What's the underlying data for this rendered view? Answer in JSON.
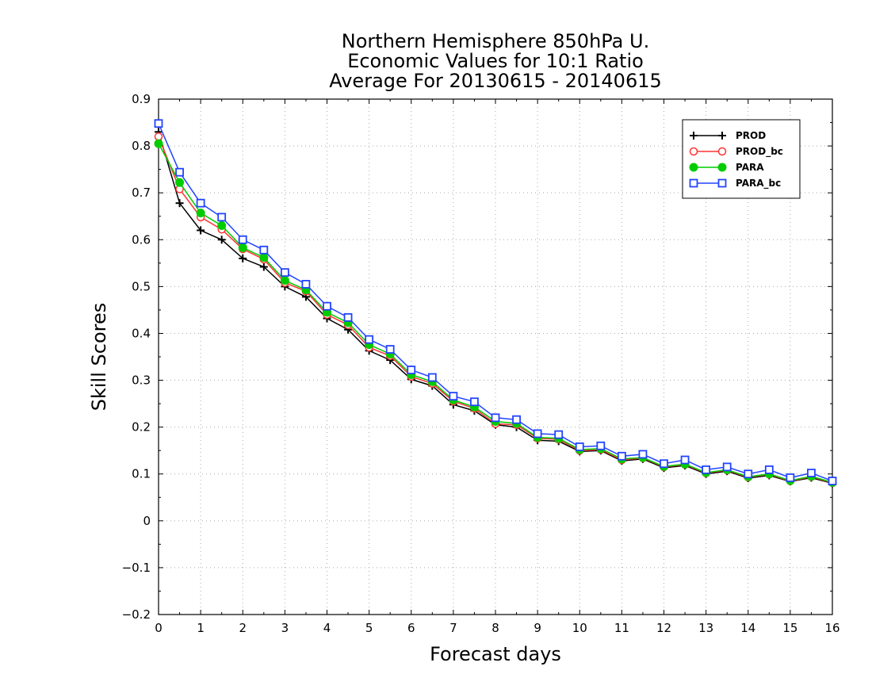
{
  "chart_data": {
    "type": "line",
    "title": [
      "Northern Hemisphere 850hPa U.",
      "Economic Values for 10:1 Ratio",
      "Average For 20130615 - 20140615"
    ],
    "xlabel": "Forecast days",
    "ylabel": "Skill Scores",
    "xlim": [
      0,
      16
    ],
    "ylim": [
      -0.2,
      0.9
    ],
    "xticks": [
      0,
      1,
      2,
      3,
      4,
      5,
      6,
      7,
      8,
      9,
      10,
      11,
      12,
      13,
      14,
      15,
      16
    ],
    "xtick_labels": [
      "0",
      "1",
      "2",
      "3",
      "4",
      "5",
      "6",
      "7",
      "8",
      "9",
      "10",
      "11",
      "12",
      "13",
      "14",
      "15",
      "16"
    ],
    "yticks": [
      -0.2,
      -0.1,
      0,
      0.1,
      0.2,
      0.3,
      0.4,
      0.5,
      0.6,
      0.7,
      0.8,
      0.9
    ],
    "ytick_labels": [
      "−0.2",
      "−0.1",
      "0",
      "0.1",
      "0.2",
      "0.3",
      "0.4",
      "0.5",
      "0.6",
      "0.7",
      "0.8",
      "0.9"
    ],
    "grid": true,
    "legend_position": "top-right",
    "x": [
      0,
      0.5,
      1,
      1.5,
      2,
      2.5,
      3,
      3.5,
      4,
      4.5,
      5,
      5.5,
      6,
      6.5,
      7,
      7.5,
      8,
      8.5,
      9,
      9.5,
      10,
      10.5,
      11,
      11.5,
      12,
      12.5,
      13,
      13.5,
      14,
      14.5,
      15,
      15.5,
      16
    ],
    "series": [
      {
        "name": "PROD",
        "color": "#000000",
        "marker": "plus",
        "values": [
          0.83,
          0.678,
          0.62,
          0.6,
          0.56,
          0.542,
          0.5,
          0.478,
          0.432,
          0.408,
          0.363,
          0.343,
          0.302,
          0.288,
          0.248,
          0.235,
          0.205,
          0.2,
          0.172,
          0.17,
          0.148,
          0.15,
          0.128,
          0.132,
          0.113,
          0.118,
          0.1,
          0.106,
          0.091,
          0.097,
          0.084,
          0.092,
          0.08
        ]
      },
      {
        "name": "PROD_bc",
        "color": "#ff3333",
        "marker": "circle-open",
        "values": [
          0.82,
          0.708,
          0.648,
          0.622,
          0.58,
          0.558,
          0.508,
          0.49,
          0.44,
          0.418,
          0.37,
          0.352,
          0.308,
          0.293,
          0.255,
          0.24,
          0.207,
          0.205,
          0.176,
          0.174,
          0.15,
          0.152,
          0.13,
          0.134,
          0.115,
          0.12,
          0.102,
          0.108,
          0.093,
          0.099,
          0.085,
          0.094,
          0.081
        ]
      },
      {
        "name": "PARA",
        "color": "#00cc00",
        "marker": "circle-filled",
        "values": [
          0.805,
          0.722,
          0.657,
          0.63,
          0.583,
          0.562,
          0.513,
          0.493,
          0.445,
          0.423,
          0.376,
          0.356,
          0.312,
          0.297,
          0.258,
          0.243,
          0.212,
          0.208,
          0.178,
          0.176,
          0.152,
          0.154,
          0.132,
          0.135,
          0.116,
          0.121,
          0.103,
          0.109,
          0.094,
          0.1,
          0.086,
          0.095,
          0.082
        ]
      },
      {
        "name": "PARA_bc",
        "color": "#2244ff",
        "marker": "square-open",
        "values": [
          0.848,
          0.744,
          0.678,
          0.648,
          0.6,
          0.578,
          0.53,
          0.505,
          0.458,
          0.434,
          0.387,
          0.366,
          0.322,
          0.306,
          0.266,
          0.254,
          0.22,
          0.216,
          0.186,
          0.184,
          0.158,
          0.16,
          0.138,
          0.142,
          0.122,
          0.13,
          0.109,
          0.115,
          0.1,
          0.109,
          0.092,
          0.102,
          0.085
        ]
      }
    ]
  }
}
